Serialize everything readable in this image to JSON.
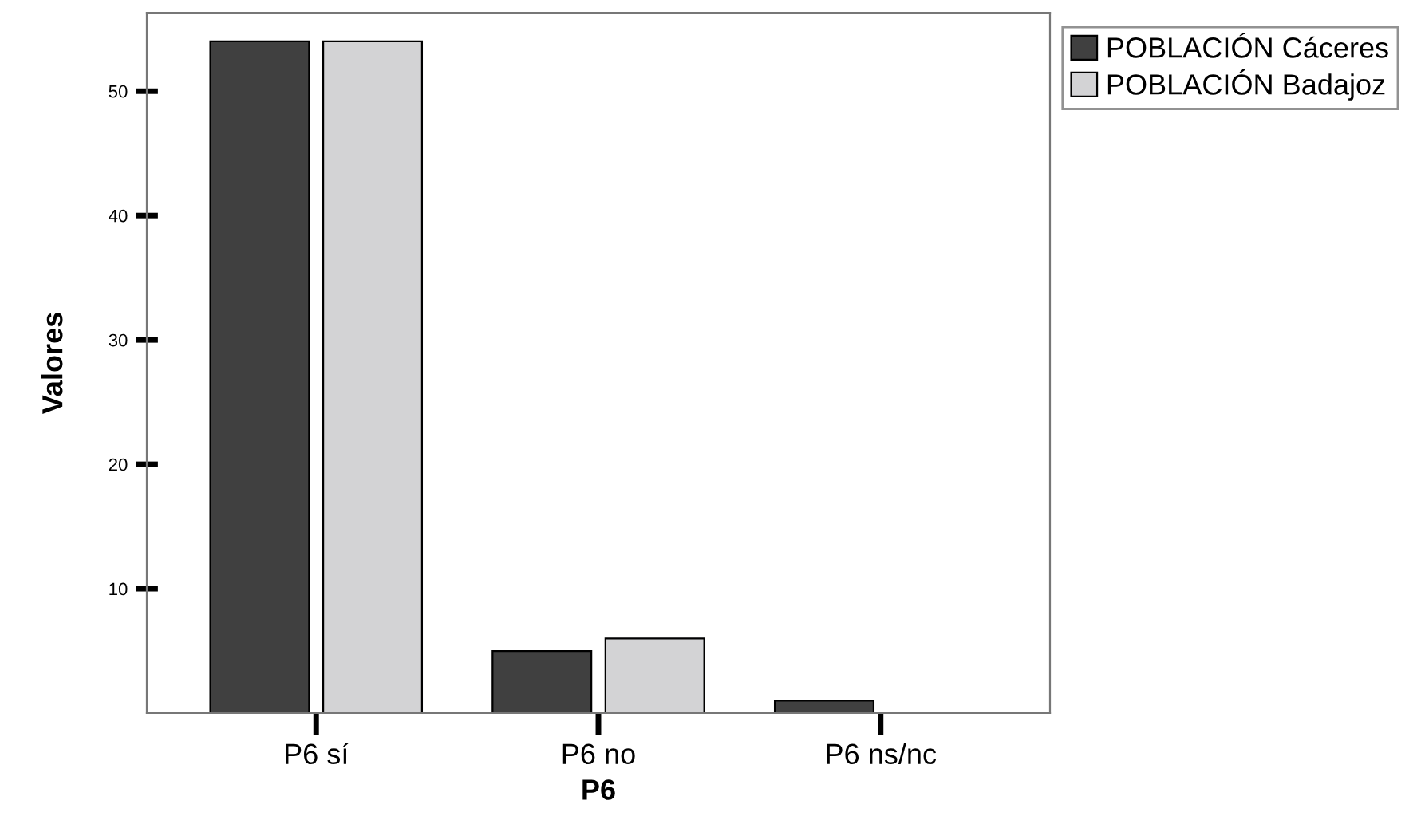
{
  "chart_data": {
    "type": "bar",
    "xlabel": "P6",
    "ylabel": "Valores",
    "categories": [
      "P6 sí",
      "P6 no",
      "P6 ns/nc"
    ],
    "series": [
      {
        "name": "POBLACIÓN Cáceres",
        "color": "#404040",
        "values": [
          54,
          5,
          1
        ]
      },
      {
        "name": "POBLACIÓN Badajoz",
        "color": "#d3d3d5",
        "values": [
          54,
          6,
          null
        ]
      }
    ],
    "ylim": [
      0,
      56.3
    ],
    "yticks": [
      10,
      20,
      30,
      40,
      50
    ],
    "grid": false,
    "legend": "top right"
  }
}
